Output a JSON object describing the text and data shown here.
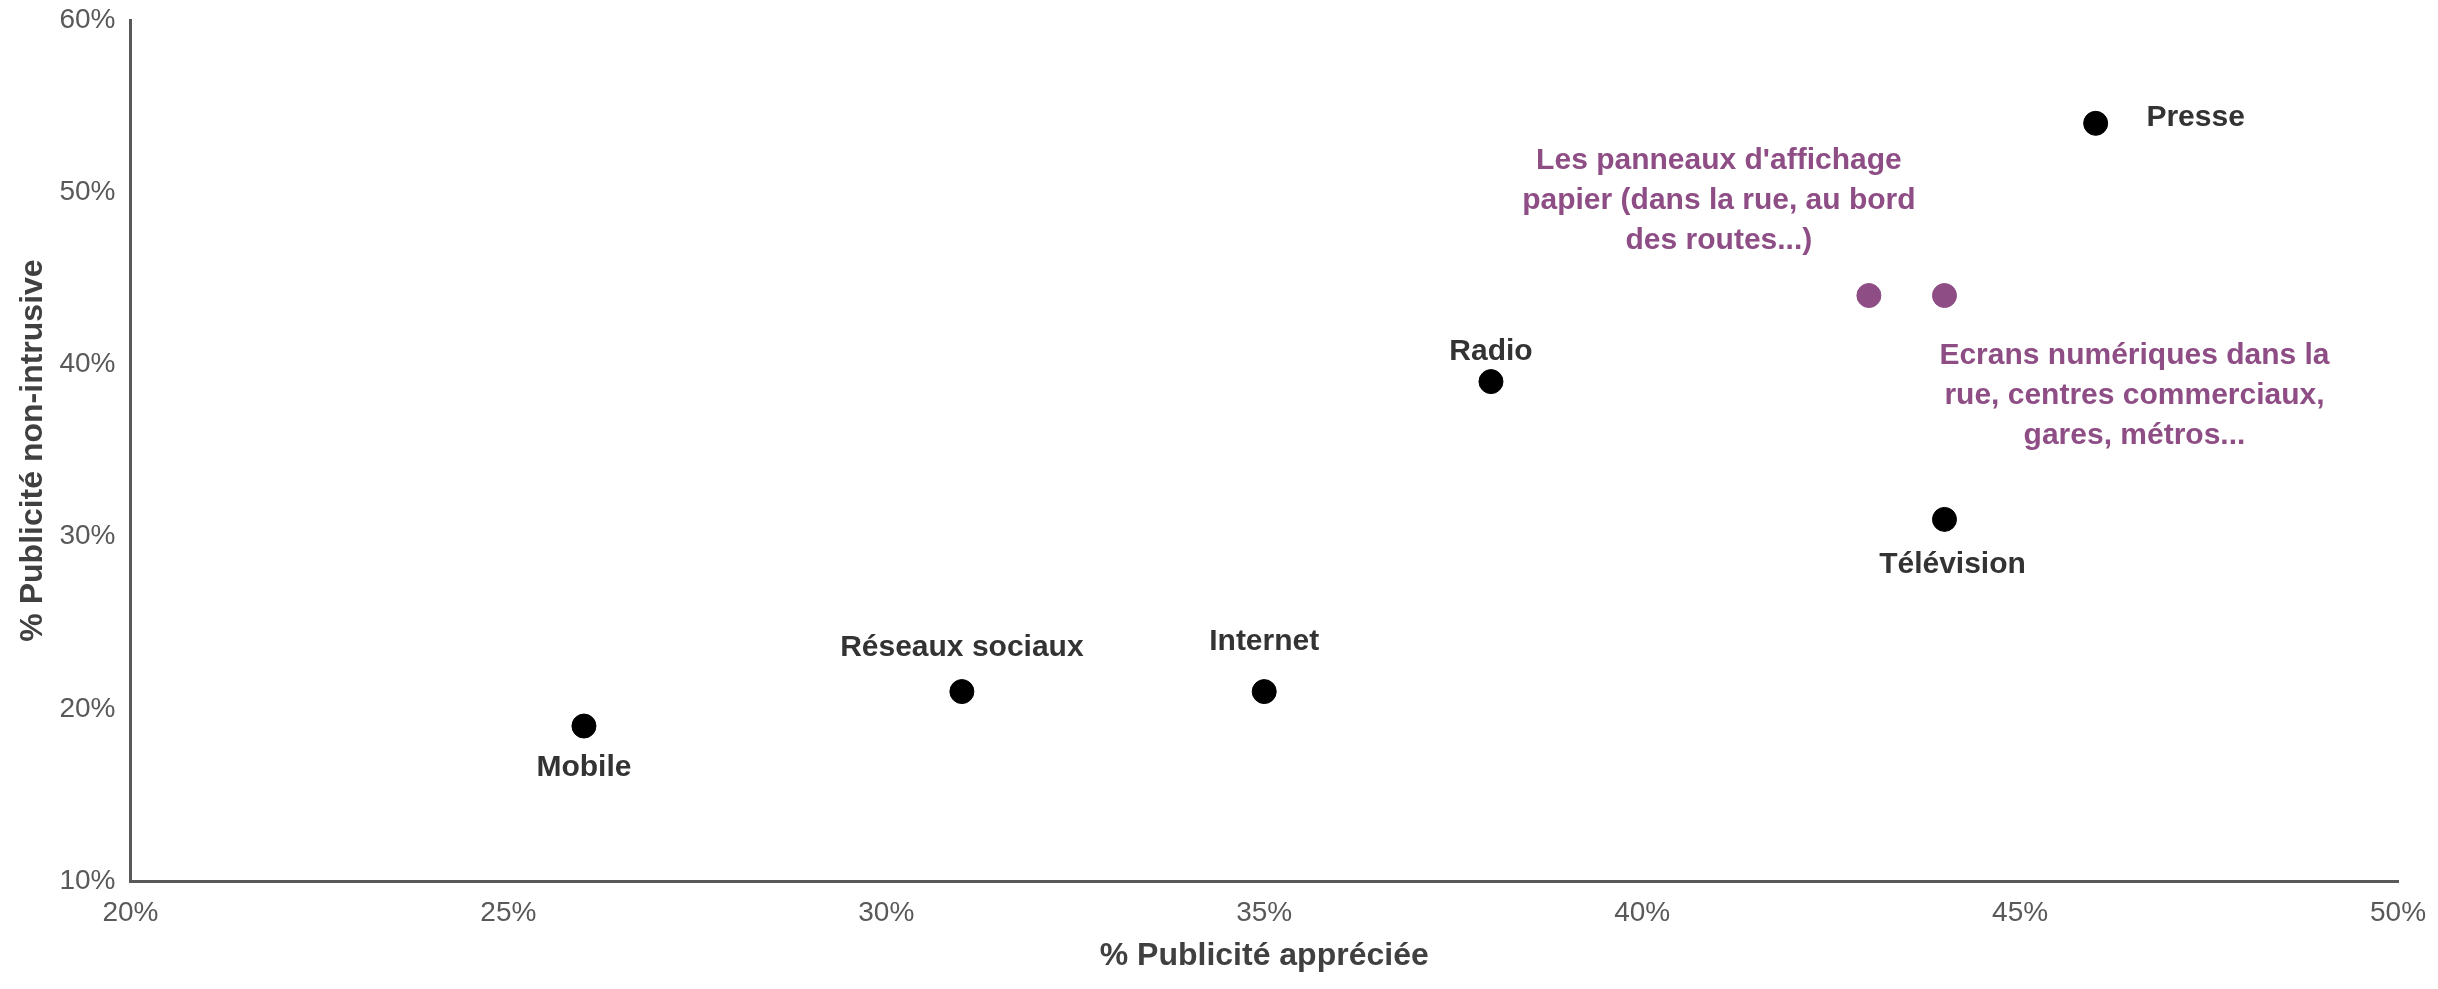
{
  "chart_data": {
    "type": "scatter",
    "xlabel": "% Publicité appréciée",
    "ylabel": "% Publicité non-intrusive",
    "xlim": [
      20,
      50
    ],
    "ylim": [
      10,
      60
    ],
    "xticks": [
      {
        "value": 20,
        "label": "20%"
      },
      {
        "value": 25,
        "label": "25%"
      },
      {
        "value": 30,
        "label": "30%"
      },
      {
        "value": 35,
        "label": "35%"
      },
      {
        "value": 40,
        "label": "40%"
      },
      {
        "value": 45,
        "label": "45%"
      },
      {
        "value": 50,
        "label": "50%"
      }
    ],
    "yticks": [
      {
        "value": 10,
        "label": "10%"
      },
      {
        "value": 20,
        "label": "20%"
      },
      {
        "value": 30,
        "label": "30%"
      },
      {
        "value": 40,
        "label": "40%"
      },
      {
        "value": 50,
        "label": "50%"
      },
      {
        "value": 60,
        "label": "60%"
      }
    ],
    "grid": false,
    "legend": false,
    "marker": "circle",
    "series": [
      {
        "x": [
          26,
          31,
          35,
          38,
          44,
          46
        ],
        "values": [
          19,
          21,
          21,
          39,
          31,
          54
        ],
        "color": "#000000"
      },
      {
        "x": [
          43,
          44
        ],
        "values": [
          44,
          44
        ],
        "color": "#8e4d85"
      }
    ],
    "annotations": [
      {
        "text": "Mobile",
        "x": 26,
        "y": 19
      },
      {
        "text": "Réseaux sociaux",
        "x": 31,
        "y": 21
      },
      {
        "text": "Internet",
        "x": 35,
        "y": 21
      },
      {
        "text": "Radio",
        "x": 38,
        "y": 39
      },
      {
        "text": "Télévision",
        "x": 44,
        "y": 31
      },
      {
        "text": "Presse",
        "x": 46,
        "y": 54
      },
      {
        "text": "Les panneaux d'affichage papier (dans la rue, au bord des routes...)",
        "x": 43,
        "y": 44
      },
      {
        "text": "Ecrans numériques dans la rue, centres commerciaux, gares, métros...",
        "x": 44,
        "y": 44
      }
    ]
  }
}
